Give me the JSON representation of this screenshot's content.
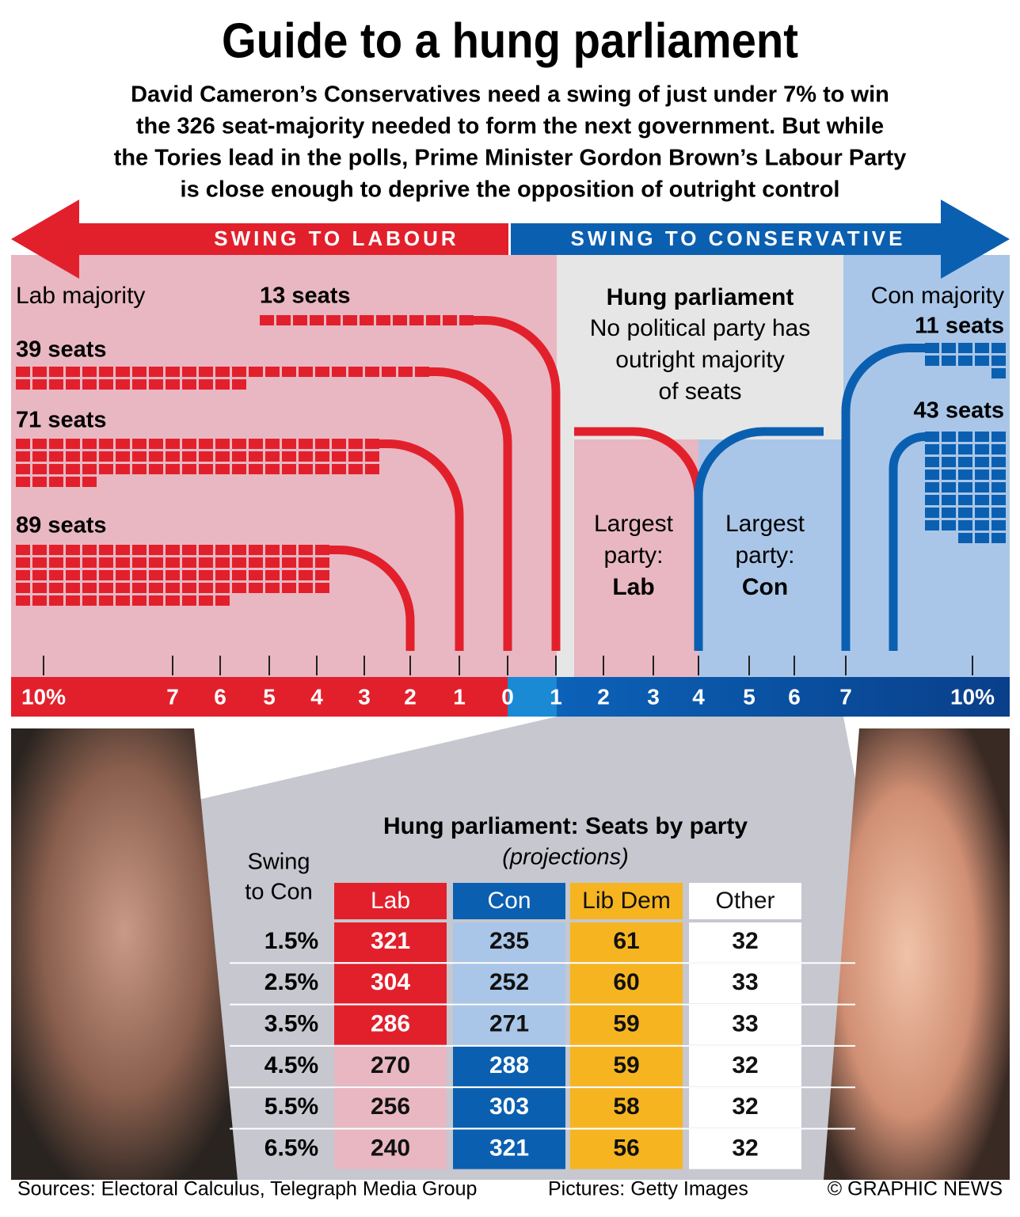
{
  "header": {
    "title": "Guide to a hung parliament",
    "subtitle": [
      "David Cameron’s Conservatives need a swing of just under 7% to win",
      "the 326 seat-majority needed to form the next government. But while",
      "the Tories lead in the polls, Prime Minister Gordon Brown’s Labour Party",
      "is close enough to deprive the opposition of outright control"
    ]
  },
  "arrows": {
    "labour": "SWING TO LABOUR",
    "conservative": "SWING TO CONSERVATIVE"
  },
  "regions": {
    "lab_majority": "Lab majority",
    "con_majority": "Con majority",
    "hung_title": "Hung parliament",
    "hung_text": [
      "No political party has",
      "outright majority",
      "of seats"
    ],
    "largest_lab": [
      "Largest",
      "party:",
      "Lab"
    ],
    "largest_con": [
      "Largest",
      "party:",
      "Con"
    ]
  },
  "lab_groups": [
    {
      "label": "13 seats",
      "seats": 13
    },
    {
      "label": "39 seats",
      "seats": 39
    },
    {
      "label": "71 seats",
      "seats": 71
    },
    {
      "label": "89 seats",
      "seats": 89
    }
  ],
  "con_groups": [
    {
      "label": "11 seats",
      "seats": 11
    },
    {
      "label": "43 seats",
      "seats": 43
    }
  ],
  "axis": {
    "ticks": [
      "10%",
      "7",
      "6",
      "5",
      "4",
      "3",
      "2",
      "1",
      "0",
      "1",
      "2",
      "3",
      "4",
      "5",
      "6",
      "7",
      "10%"
    ]
  },
  "table": {
    "title": "Hung parliament: Seats by party",
    "subtitle": "(projections)",
    "row_header": [
      "Swing",
      "to Con"
    ],
    "columns": [
      "Lab",
      "Con",
      "Lib Dem",
      "Other"
    ],
    "rows": [
      {
        "swing": "1.5%",
        "values": [
          321,
          235,
          61,
          32
        ]
      },
      {
        "swing": "2.5%",
        "values": [
          304,
          252,
          60,
          33
        ]
      },
      {
        "swing": "3.5%",
        "values": [
          286,
          271,
          59,
          33
        ]
      },
      {
        "swing": "4.5%",
        "values": [
          270,
          288,
          59,
          32
        ]
      },
      {
        "swing": "5.5%",
        "values": [
          256,
          303,
          58,
          32
        ]
      },
      {
        "swing": "6.5%",
        "values": [
          240,
          321,
          56,
          32
        ]
      }
    ]
  },
  "footer": {
    "sources": "Sources: Electoral Calculus, Telegraph Media Group",
    "pictures": "Pictures: Getty Images",
    "credit": "© GRAPHIC NEWS"
  }
}
